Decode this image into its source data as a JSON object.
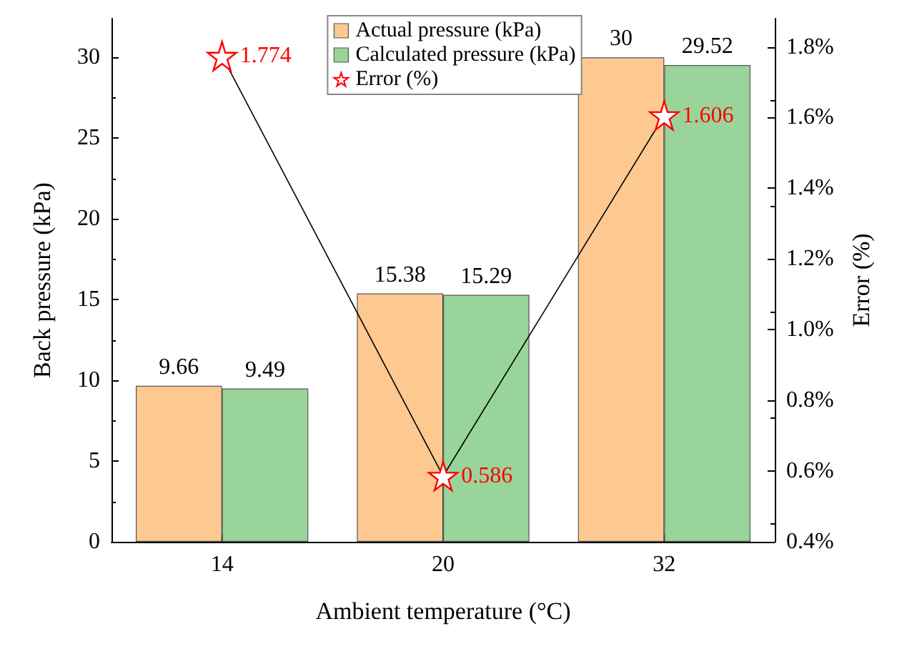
{
  "chart_data": {
    "type": "bar",
    "xlabel": "Ambient temperature (°C)",
    "ylabel": "Back pressure (kPa)",
    "y2label": "Error (%)",
    "categories": [
      "14",
      "20",
      "32"
    ],
    "series": [
      {
        "name": "Actual pressure (kPa)",
        "color": "#fdc990",
        "values": [
          9.66,
          15.38,
          30
        ]
      },
      {
        "name": "Calculated pressure (kPa)",
        "color": "#99d49b",
        "values": [
          9.49,
          15.29,
          29.52
        ]
      },
      {
        "name": "Error (%)",
        "type": "line",
        "axis": "y2",
        "color": "#ff0000",
        "values": [
          1.774,
          0.586,
          1.606
        ]
      }
    ],
    "ylim": [
      0,
      32.4
    ],
    "yticks": [
      0,
      5,
      10,
      15,
      20,
      25,
      30
    ],
    "y2lim": [
      0.4,
      1.88
    ],
    "y2ticks": [
      {
        "value": 0.4,
        "label": "0.4%"
      },
      {
        "value": 0.6,
        "label": "0.6%"
      },
      {
        "value": 0.8,
        "label": "0.8%"
      },
      {
        "value": 1.0,
        "label": "1.0%"
      },
      {
        "value": 1.2,
        "label": "1.2%"
      },
      {
        "value": 1.4,
        "label": "1.4%"
      },
      {
        "value": 1.6,
        "label": "1.6%"
      },
      {
        "value": 1.8,
        "label": "1.8%"
      }
    ],
    "data_labels": true,
    "legend": "top",
    "marker": "star",
    "grid": false
  }
}
